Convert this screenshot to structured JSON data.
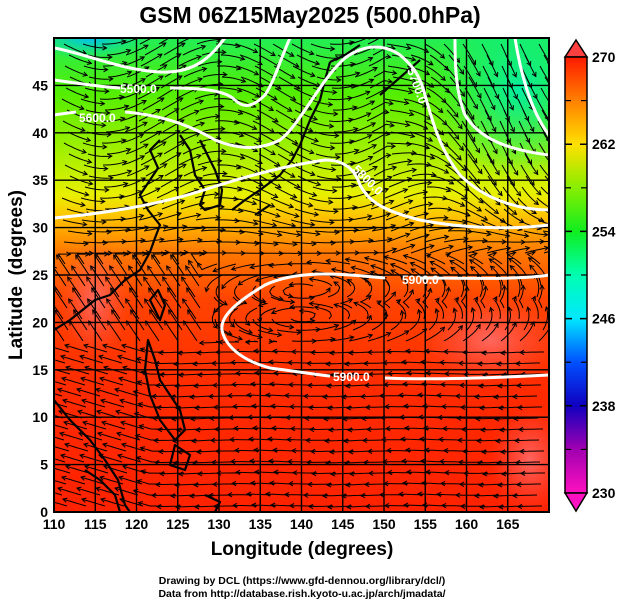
{
  "title": "GSM 06Z15May2025 (500.0hPa)",
  "chart_data": {
    "type": "heatmap",
    "title": "GSM 06Z15May2025 (500.0hPa)",
    "xlabel": "Longitude (degrees)",
    "ylabel": "Latitude  (degrees)",
    "xlim": [
      110,
      170
    ],
    "ylim": [
      0,
      50
    ],
    "x_ticks": [
      "110",
      "115",
      "120",
      "125",
      "130",
      "135",
      "140",
      "145",
      "150",
      "155",
      "160",
      "165"
    ],
    "y_ticks": [
      "0",
      "5",
      "10",
      "15",
      "20",
      "25",
      "30",
      "35",
      "40",
      "45"
    ],
    "grid": true,
    "colorbar": {
      "range": [
        230,
        270
      ],
      "ticks": [
        "270",
        "262",
        "254",
        "246",
        "238",
        "230"
      ],
      "colors": [
        "#ff00cc",
        "#7a00b0",
        "#0000cc",
        "#0066ff",
        "#00ddff",
        "#00ff99",
        "#22ee00",
        "#ccff00",
        "#ffcc00",
        "#ff6600",
        "#ff1a00"
      ],
      "extend": "both"
    },
    "contours": [
      {
        "level": "5500.0",
        "label": "5500.0"
      },
      {
        "level": "5600.0",
        "label": "5600.0"
      },
      {
        "level": "5700.0",
        "label": "5700.0"
      },
      {
        "level": "5800.0",
        "label": "5800.0"
      },
      {
        "level": "5900.0",
        "label": "5900.0"
      },
      {
        "level": "5900.0",
        "label": "5900.0"
      }
    ],
    "field": "temperature (K) shaded, geopotential height contours, wind streamlines"
  },
  "credits": {
    "line1": "Drawing by DCL (https://www.gfd-dennou.org/library/dcl/)",
    "line2": "Data from http://database.rish.kyoto-u.ac.jp/arch/jmadata/"
  },
  "colors": {
    "contour": "#ffffff",
    "streamline": "#000000",
    "frame": "#000000"
  }
}
